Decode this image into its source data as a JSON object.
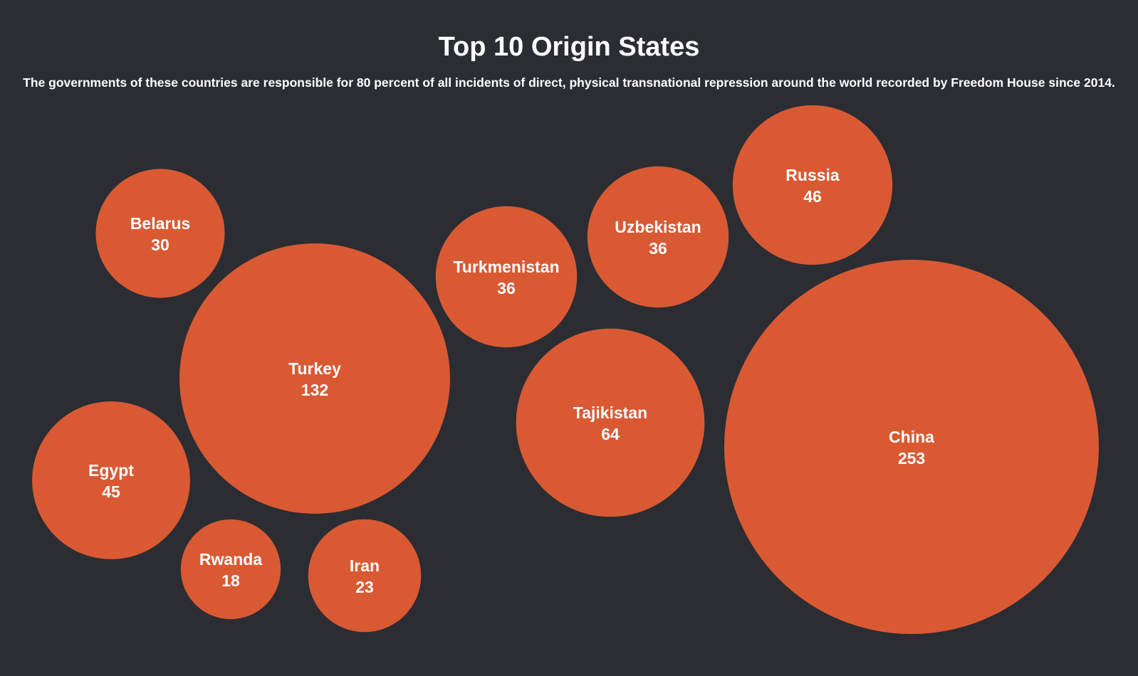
{
  "title": "Top 10 Origin States",
  "subtitle": "The governments of these countries are responsible for 80 percent of all incidents of direct, physical transnational repression around the world recorded by Freedom House since 2014.",
  "colors": {
    "background": "#2b2d32",
    "bubble": "#d95933",
    "text": "#ffffff"
  },
  "chart_data": {
    "type": "bubble",
    "title": "Top 10 Origin States",
    "subtitle": "The governments of these countries are responsible for 80 percent of all incidents of direct, physical transnational repression around the world recorded by Freedom House since 2014.",
    "categories": [
      "China",
      "Turkey",
      "Tajikistan",
      "Russia",
      "Egypt",
      "Uzbekistan",
      "Turkmenistan",
      "Belarus",
      "Iran",
      "Rwanda"
    ],
    "values": [
      253,
      132,
      64,
      46,
      45,
      36,
      36,
      30,
      23,
      18
    ]
  }
}
